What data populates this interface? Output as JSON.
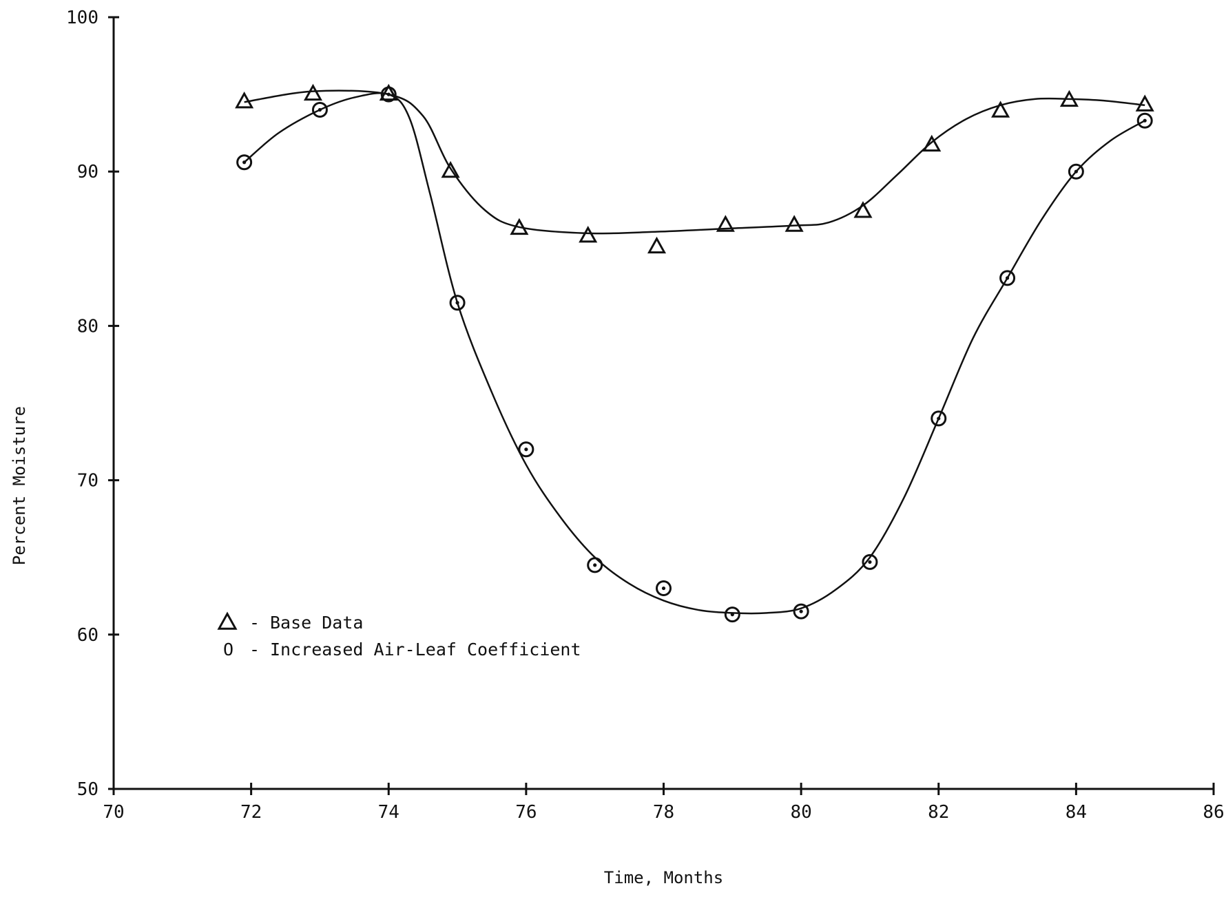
{
  "chart_data": {
    "type": "scatter",
    "xlabel": "Time, Months",
    "ylabel": "Percent Moisture",
    "xlim": [
      70,
      86
    ],
    "ylim": [
      50,
      100
    ],
    "x_ticks": [
      "70",
      "72",
      "74",
      "76",
      "78",
      "80",
      "82",
      "84",
      "86"
    ],
    "y_ticks": [
      "50",
      "60",
      "70",
      "80",
      "90",
      "100"
    ],
    "grid": false,
    "legend_position": "lower-left",
    "series": [
      {
        "name": "Base Data",
        "legend_symbol": "△",
        "marker": "triangle",
        "x": [
          71.9,
          72.9,
          74.0,
          74.9,
          75.9,
          76.9,
          77.9,
          78.9,
          79.9,
          80.9,
          81.9,
          82.9,
          83.9,
          85.0
        ],
        "y": [
          94.5,
          95.0,
          95.0,
          90.0,
          86.3,
          85.8,
          85.1,
          86.5,
          86.5,
          87.4,
          91.7,
          93.9,
          94.6,
          94.3
        ],
        "fit_x": [
          71.9,
          72.9,
          74.0,
          74.5,
          74.9,
          75.4,
          75.9,
          76.9,
          77.9,
          78.9,
          79.9,
          80.4,
          80.9,
          81.4,
          81.9,
          82.4,
          82.9,
          83.4,
          83.9,
          84.4,
          85.0
        ],
        "fit_y": [
          94.5,
          95.2,
          95.0,
          93.6,
          90.2,
          87.5,
          86.4,
          86.0,
          86.1,
          86.3,
          86.5,
          86.7,
          87.8,
          89.8,
          91.9,
          93.4,
          94.3,
          94.7,
          94.7,
          94.6,
          94.3
        ]
      },
      {
        "name": "Increased Air-Leaf Coefficient",
        "legend_symbol": "O",
        "marker": "circle-dot",
        "x": [
          71.9,
          73.0,
          74.0,
          75.0,
          76.0,
          77.0,
          78.0,
          79.0,
          80.0,
          81.0,
          82.0,
          83.0,
          84.0,
          85.0
        ],
        "y": [
          90.6,
          94.0,
          95.0,
          81.5,
          72.0,
          64.5,
          63.0,
          61.3,
          61.5,
          64.7,
          74.0,
          83.1,
          90.0,
          93.3
        ],
        "fit_x": [
          71.9,
          72.4,
          73.0,
          73.5,
          74.0,
          74.3,
          74.6,
          75.0,
          75.5,
          76.0,
          76.5,
          77.0,
          77.5,
          78.0,
          78.5,
          79.0,
          79.5,
          80.0,
          80.5,
          81.0,
          81.5,
          82.0,
          82.5,
          83.0,
          83.5,
          84.0,
          84.5,
          85.0
        ],
        "fit_y": [
          90.6,
          92.5,
          94.0,
          94.8,
          95.0,
          93.5,
          88.6,
          81.5,
          75.7,
          71.0,
          67.6,
          65.0,
          63.3,
          62.2,
          61.6,
          61.4,
          61.4,
          61.7,
          62.9,
          65.0,
          68.9,
          74.0,
          79.2,
          83.1,
          86.9,
          90.0,
          92.0,
          93.3
        ]
      }
    ]
  }
}
